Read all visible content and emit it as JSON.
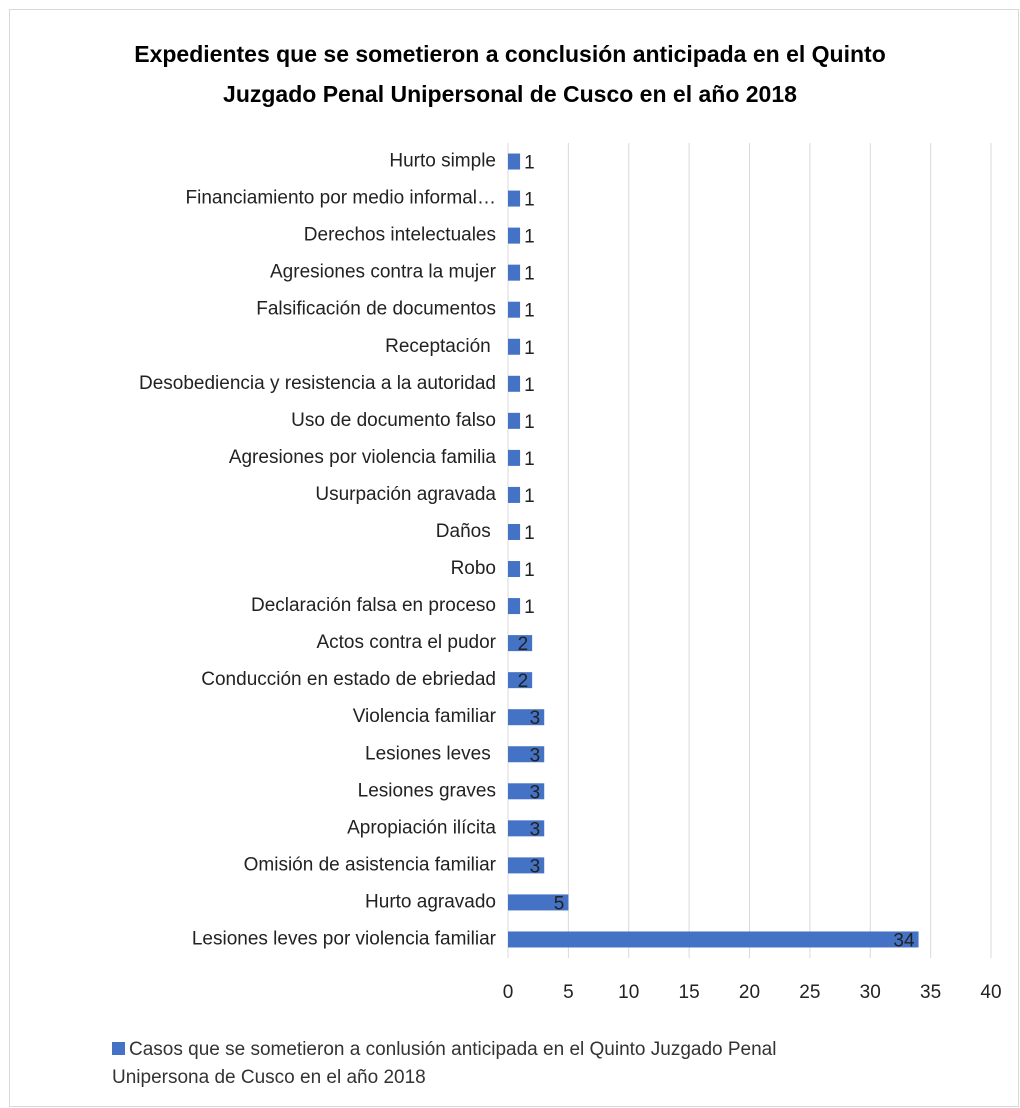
{
  "chart_data": {
    "type": "barh",
    "title": "Expedientes que se sometieron a conclusión anticipada en el Quinto Juzgado Penal Unipersonal de Cusco en el año 2018",
    "categories": [
      "Hurto simple",
      "Financiamiento por medio informal…",
      "Derechos intelectuales",
      "Agresiones contra la mujer",
      "Falsificación de documentos",
      "Receptación ",
      "Desobediencia y resistencia a la autoridad",
      "Uso de documento falso",
      "Agresiones por violencia familia",
      "Usurpación agravada",
      "Daños ",
      "Robo",
      "Declaración falsa en proceso",
      "Actos contra el pudor",
      "Conducción en estado de ebriedad",
      "Violencia familiar",
      "Lesiones leves ",
      "Lesiones graves",
      "Apropiación ilícita",
      "Omisión de asistencia familiar",
      "Hurto agravado",
      "Lesiones leves por violencia familiar"
    ],
    "series": [
      {
        "name": "Casos que se sometieron a conlusión anticipada en el Quinto Juzgado Penal Unipersona de Cusco en el año 2018",
        "color": "#4472c4",
        "values": [
          1,
          1,
          1,
          1,
          1,
          1,
          1,
          1,
          1,
          1,
          1,
          1,
          1,
          2,
          2,
          3,
          3,
          3,
          3,
          3,
          5,
          34
        ]
      }
    ],
    "xlim": [
      0,
      40
    ],
    "xticks": [
      0,
      5,
      10,
      15,
      20,
      25,
      30,
      35,
      40
    ],
    "grid": true
  }
}
